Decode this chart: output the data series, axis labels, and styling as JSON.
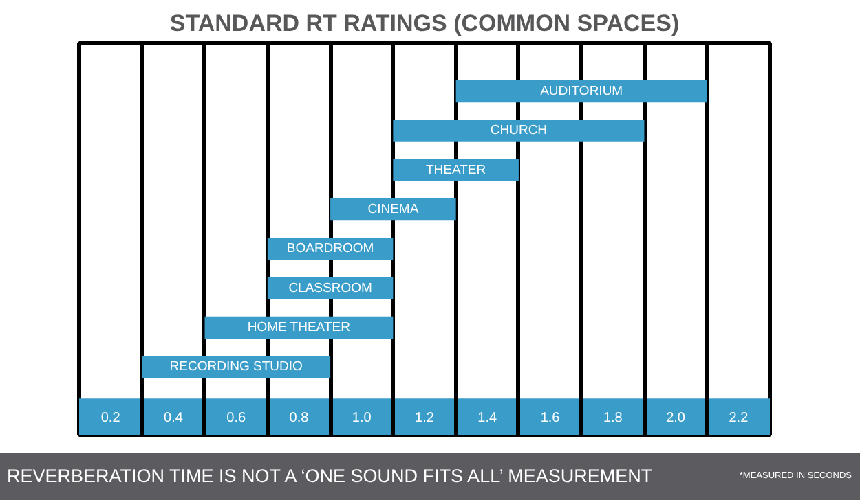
{
  "chart_data": {
    "type": "bar",
    "orientation": "horizontal",
    "title": "STANDARD RT RATINGS (COMMON SPACES)",
    "categories": [
      "AUDITORIUM",
      "CHURCH",
      "THEATER",
      "CINEMA",
      "BOARDROOM",
      "CLASSROOM",
      "HOME THEATER",
      "RECORDING STUDIO"
    ],
    "base": [
      1.3,
      1.1,
      1.1,
      0.9,
      0.7,
      0.7,
      0.5,
      0.3
    ],
    "values": [
      0.8,
      0.8,
      0.4,
      0.4,
      0.4,
      0.4,
      0.6,
      0.6
    ],
    "color": "#3a9cc9",
    "xlim": [
      0.1,
      2.3
    ],
    "xticks": [
      0.2,
      0.4,
      0.6,
      0.8,
      {
        "value": 1,
        "label": "1.0"
      },
      1.2,
      1.4,
      1.6,
      1.8,
      {
        "value": 2,
        "label": "2.0"
      },
      2.2
    ],
    "grid": "x",
    "annotations": [
      "REVERBERATION TIME IS NOT A ‘ONE SOUND FITS ALL’ MEASUREMENT",
      "*MEASURED IN SECONDS"
    ]
  }
}
